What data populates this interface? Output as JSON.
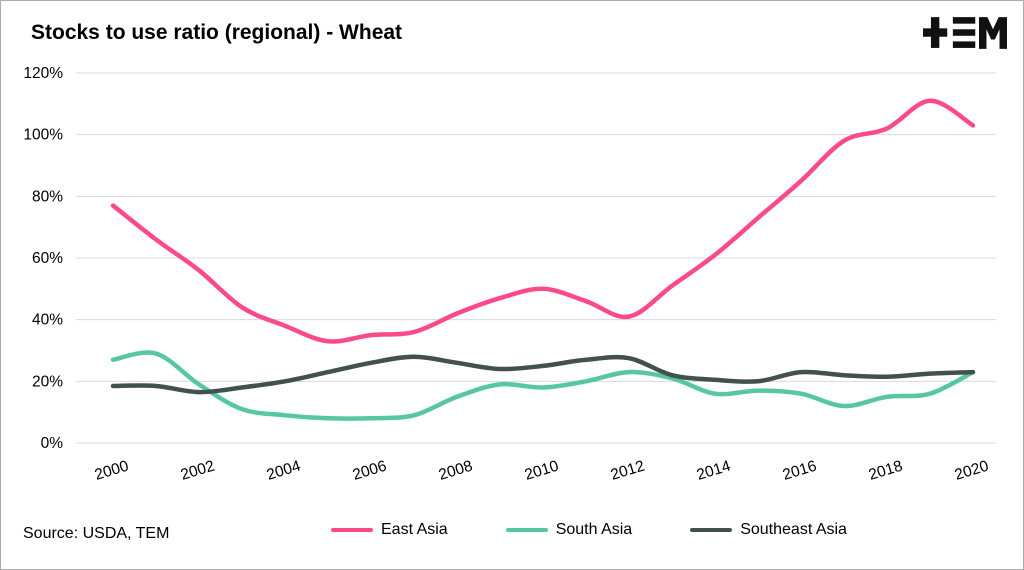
{
  "header": {
    "title": "Stocks to use ratio (regional) - Wheat",
    "logo": "TEM"
  },
  "source": "Source: USDA, TEM",
  "chart_data": {
    "type": "line",
    "title": "Stocks to use ratio (regional) - Wheat",
    "xlabel": "",
    "ylabel": "",
    "x": [
      2000,
      2001,
      2002,
      2003,
      2004,
      2005,
      2006,
      2007,
      2008,
      2009,
      2010,
      2011,
      2012,
      2013,
      2014,
      2015,
      2016,
      2017,
      2018,
      2019,
      2020
    ],
    "series": [
      {
        "name": "East Asia",
        "color": "#fa4a8c",
        "values": [
          77,
          66,
          56,
          44,
          38,
          33,
          35,
          36,
          42,
          47,
          50,
          46,
          41,
          51,
          61,
          73,
          85,
          98,
          102,
          111,
          103
        ]
      },
      {
        "name": "South Asia",
        "color": "#57c7a3",
        "values": [
          27,
          29,
          19,
          11,
          9,
          8,
          8,
          9,
          15,
          19,
          18,
          20,
          23,
          21,
          16,
          17,
          16,
          12,
          15,
          16,
          23
        ]
      },
      {
        "name": "Southeast Asia",
        "color": "#42514d",
        "values": [
          18.5,
          18.5,
          16.5,
          18,
          20,
          23,
          26,
          28,
          26,
          24,
          25,
          27,
          27.5,
          22,
          20.5,
          20,
          23,
          22,
          21.5,
          22.5,
          23
        ]
      }
    ],
    "ylim": [
      0,
      120
    ],
    "yticks": [
      0,
      20,
      40,
      60,
      80,
      100,
      120
    ],
    "ytick_suffix": "%",
    "xticks": [
      2000,
      2002,
      2004,
      2006,
      2008,
      2010,
      2012,
      2014,
      2016,
      2018,
      2020
    ],
    "grid": true,
    "grid_color": "#d9d9d9",
    "legend_position": "bottom"
  }
}
